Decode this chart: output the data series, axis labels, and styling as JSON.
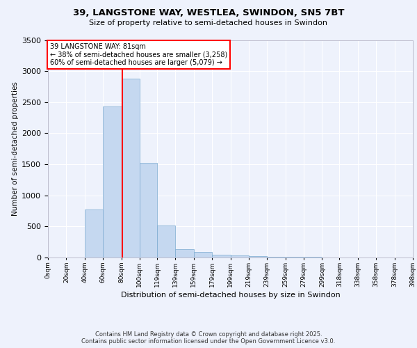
{
  "title_line1": "39, LANGSTONE WAY, WESTLEA, SWINDON, SN5 7BT",
  "title_line2": "Size of property relative to semi-detached houses in Swindon",
  "xlabel": "Distribution of semi-detached houses by size in Swindon",
  "ylabel": "Number of semi-detached properties",
  "property_size": 81,
  "annotation_line1": "39 LANGSTONE WAY: 81sqm",
  "annotation_line2": "← 38% of semi-detached houses are smaller (3,258)",
  "annotation_line3": "60% of semi-detached houses are larger (5,079) →",
  "bar_values": [
    0,
    5,
    770,
    2430,
    2880,
    1520,
    510,
    140,
    85,
    50,
    30,
    20,
    15,
    10,
    8,
    5,
    4,
    3,
    2
  ],
  "bin_labels": [
    "0sqm",
    "20sqm",
    "40sqm",
    "60sqm",
    "80sqm",
    "100sqm",
    "119sqm",
    "139sqm",
    "159sqm",
    "179sqm",
    "199sqm",
    "219sqm",
    "239sqm",
    "259sqm",
    "279sqm",
    "299sqm",
    "318sqm",
    "338sqm",
    "358sqm",
    "378sqm",
    "398sqm"
  ],
  "bin_edges": [
    0,
    20,
    40,
    60,
    80,
    100,
    119,
    139,
    159,
    179,
    199,
    219,
    239,
    259,
    279,
    299,
    318,
    338,
    358,
    378,
    398
  ],
  "bar_color": "#c5d8f0",
  "bar_edge_color": "#7aaad0",
  "red_line_x": 81,
  "ylim": [
    0,
    3500
  ],
  "yticks": [
    0,
    500,
    1000,
    1500,
    2000,
    2500,
    3000,
    3500
  ],
  "background_color": "#eef2fc",
  "plot_bg_color": "#eef2fc",
  "footer_line1": "Contains HM Land Registry data © Crown copyright and database right 2025.",
  "footer_line2": "Contains public sector information licensed under the Open Government Licence v3.0."
}
